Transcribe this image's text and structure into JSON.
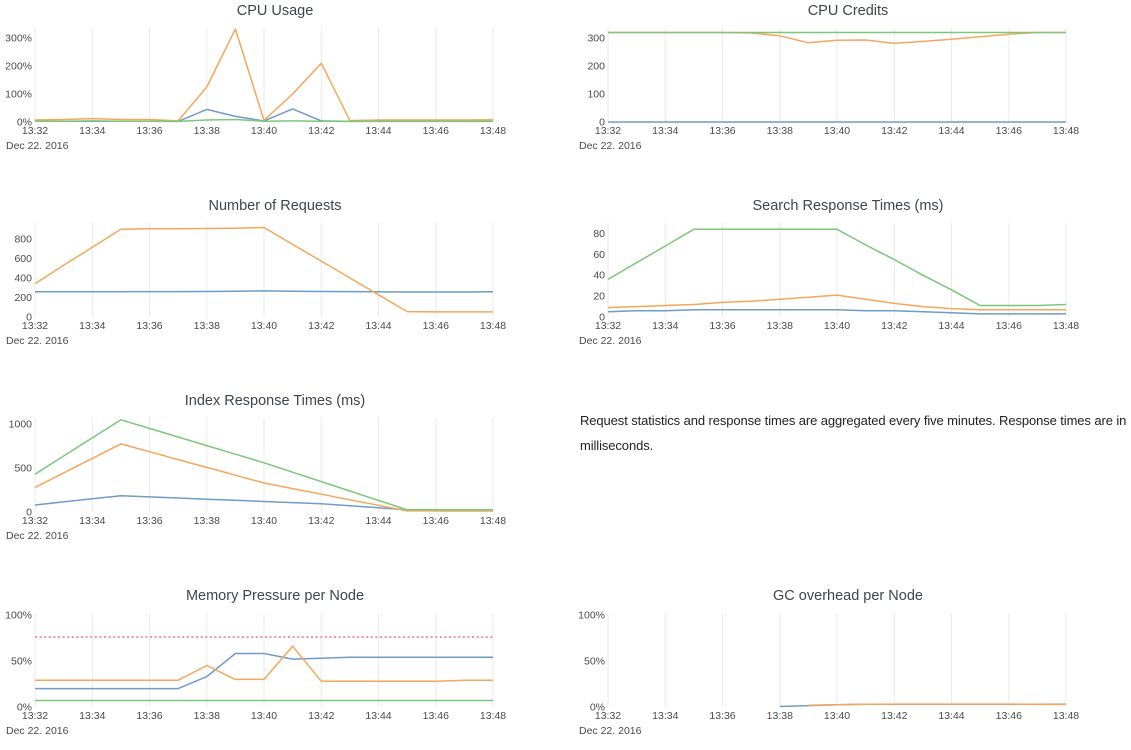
{
  "page": {
    "note": "Request statistics and response times are aggregated every five minutes. Response times are in milliseconds."
  },
  "axis": {
    "date_label": "Dec 22. 2016",
    "x_tick_labels": [
      "13:32",
      "13:34",
      "13:36",
      "13:38",
      "13:40",
      "13:42",
      "13:44",
      "13:46",
      "13:48"
    ]
  },
  "style": {
    "grid_color": "#eaeaea",
    "series_blue": "#6e9bc8",
    "series_orange": "#f5a65b",
    "series_green": "#7cc77a",
    "threshold_red": "#ef8686"
  },
  "chart_data": [
    {
      "type": "line",
      "title": "CPU Usage",
      "ylabel": "",
      "xlabel": "",
      "ylim": [
        0,
        336
      ],
      "grid": "vertical",
      "legend": "none",
      "yticks": [
        {
          "value": 0,
          "label": "0%"
        },
        {
          "value": 100,
          "label": "100%"
        },
        {
          "value": 200,
          "label": "200%"
        },
        {
          "value": 300,
          "label": "300%"
        }
      ],
      "x_note": "one point per minute from 13:32 to 13:48",
      "series": [
        {
          "name": "blue",
          "color": "#6e9bc8",
          "values": [
            3,
            3,
            3,
            3,
            3,
            2,
            45,
            20,
            4,
            47,
            4,
            2,
            2,
            2,
            2,
            2,
            2
          ]
        },
        {
          "name": "orange",
          "color": "#f5a65b",
          "values": [
            7,
            9,
            12,
            9,
            9,
            4,
            125,
            332,
            6,
            100,
            210,
            5,
            7,
            7,
            7,
            7,
            8
          ]
        },
        {
          "name": "green",
          "color": "#7cc77a",
          "values": [
            2,
            3,
            4,
            3,
            3,
            2,
            7,
            9,
            3,
            4,
            3,
            2,
            3,
            3,
            3,
            3,
            3
          ]
        }
      ]
    },
    {
      "type": "line",
      "title": "CPU Credits",
      "ylabel": "",
      "xlabel": "",
      "ylim": [
        0,
        336
      ],
      "grid": "vertical",
      "legend": "none",
      "yticks": [
        {
          "value": 0,
          "label": "0"
        },
        {
          "value": 100,
          "label": "100"
        },
        {
          "value": 200,
          "label": "200"
        },
        {
          "value": 300,
          "label": "300"
        }
      ],
      "series": [
        {
          "name": "blue",
          "color": "#6e9bc8",
          "values": [
            0,
            0,
            0,
            0,
            0,
            0,
            0,
            0,
            0,
            0,
            0,
            0,
            0,
            0,
            0,
            0,
            0
          ]
        },
        {
          "name": "orange",
          "color": "#f5a65b",
          "values": [
            320,
            320,
            320,
            320,
            320,
            318,
            308,
            283,
            292,
            293,
            281,
            288,
            296,
            305,
            314,
            320,
            320
          ]
        },
        {
          "name": "green",
          "color": "#7cc77a",
          "values": [
            320,
            320,
            320,
            320,
            320,
            320,
            320,
            320,
            320,
            320,
            320,
            320,
            320,
            320,
            320,
            320,
            320
          ]
        }
      ]
    },
    {
      "type": "line",
      "title": "Number of Requests",
      "ylabel": "",
      "xlabel": "",
      "ylim": [
        0,
        964
      ],
      "grid": "vertical",
      "legend": "none",
      "yticks": [
        {
          "value": 0,
          "label": "0"
        },
        {
          "value": 200,
          "label": "200"
        },
        {
          "value": 400,
          "label": "400"
        },
        {
          "value": 600,
          "label": "600"
        },
        {
          "value": 800,
          "label": "800"
        }
      ],
      "series": [
        {
          "name": "blue",
          "color": "#6e9bc8",
          "values": [
            258,
            258,
            258,
            259,
            260,
            260,
            262,
            265,
            268,
            265,
            262,
            260,
            258,
            256,
            256,
            256,
            258
          ]
        },
        {
          "name": "orange",
          "color": "#f5a65b",
          "values": [
            340,
            530,
            715,
            900,
            905,
            905,
            908,
            910,
            918,
            745,
            573,
            400,
            228,
            55,
            52,
            52,
            52
          ]
        }
      ]
    },
    {
      "type": "line",
      "title": "Search Response Times (ms)",
      "ylabel": "",
      "xlabel": "",
      "ylim": [
        0,
        90
      ],
      "grid": "vertical",
      "legend": "none",
      "yticks": [
        {
          "value": 0,
          "label": "0"
        },
        {
          "value": 20,
          "label": "20"
        },
        {
          "value": 40,
          "label": "40"
        },
        {
          "value": 60,
          "label": "60"
        },
        {
          "value": 80,
          "label": "80"
        }
      ],
      "series": [
        {
          "name": "blue",
          "color": "#6e9bc8",
          "values": [
            5,
            6,
            6,
            7,
            7,
            7,
            7,
            7,
            7,
            6,
            6,
            5,
            4,
            3,
            3,
            3,
            3
          ]
        },
        {
          "name": "orange",
          "color": "#f5a65b",
          "values": [
            9,
            10,
            11,
            12,
            14,
            15,
            17,
            19,
            21,
            17,
            13,
            10,
            8,
            7,
            7,
            7,
            7
          ]
        },
        {
          "name": "green",
          "color": "#7cc77a",
          "values": [
            36,
            52,
            68,
            84,
            84,
            84,
            84,
            84,
            84,
            69,
            55,
            40,
            26,
            11,
            11,
            11,
            12
          ]
        }
      ]
    },
    {
      "type": "line",
      "title": "Index Response Times (ms)",
      "ylabel": "",
      "xlabel": "",
      "ylim": [
        0,
        1070
      ],
      "grid": "vertical",
      "legend": "none",
      "yticks": [
        {
          "value": 0,
          "label": "0"
        },
        {
          "value": 500,
          "label": "500"
        },
        {
          "value": 1000,
          "label": "1000"
        }
      ],
      "series": [
        {
          "name": "blue",
          "color": "#6e9bc8",
          "values": [
            80,
            115,
            150,
            185,
            172,
            159,
            146,
            133,
            120,
            107,
            94,
            71,
            48,
            25,
            12,
            12,
            12
          ]
        },
        {
          "name": "orange",
          "color": "#f5a65b",
          "values": [
            280,
            445,
            610,
            775,
            686,
            597,
            508,
            419,
            330,
            266,
            203,
            139,
            76,
            12,
            12,
            12,
            12
          ]
        },
        {
          "name": "green",
          "color": "#7cc77a",
          "values": [
            430,
            637,
            843,
            1050,
            952,
            854,
            756,
            658,
            560,
            453,
            346,
            239,
            132,
            25,
            25,
            25,
            25
          ]
        }
      ]
    },
    {
      "type": "line",
      "title": "Memory Pressure per Node",
      "ylabel": "",
      "xlabel": "",
      "ylim": [
        0,
        102
      ],
      "grid": "vertical",
      "legend": "none",
      "yticks": [
        {
          "value": 0,
          "label": "0%"
        },
        {
          "value": 50,
          "label": "50%"
        },
        {
          "value": 100,
          "label": "100%"
        }
      ],
      "threshold": {
        "value": 76,
        "color": "#ef8686",
        "style": "dotted"
      },
      "series": [
        {
          "name": "blue",
          "color": "#6e9bc8",
          "values": [
            20,
            20,
            20,
            20,
            20,
            20,
            33,
            58,
            58,
            52,
            53,
            54,
            54,
            54,
            54,
            54,
            54
          ]
        },
        {
          "name": "orange",
          "color": "#f5a65b",
          "values": [
            29,
            29,
            29,
            29,
            29,
            29,
            45,
            30,
            30,
            66,
            28,
            28,
            28,
            28,
            28,
            29,
            29
          ]
        },
        {
          "name": "green",
          "color": "#7cc77a",
          "values": [
            7,
            7,
            7,
            7,
            7,
            7,
            7,
            7,
            7,
            7,
            7,
            7,
            7,
            7,
            7,
            7,
            7
          ]
        }
      ]
    },
    {
      "type": "line",
      "title": "GC overhead per Node",
      "ylabel": "",
      "xlabel": "",
      "ylim": [
        0,
        102
      ],
      "grid": "vertical",
      "legend": "none",
      "yticks": [
        {
          "value": 0,
          "label": "0%"
        },
        {
          "value": 50,
          "label": "50%"
        },
        {
          "value": 100,
          "label": "100%"
        }
      ],
      "series": [
        {
          "name": "blue",
          "color": "#6e9bc8",
          "values": [
            null,
            null,
            null,
            null,
            null,
            null,
            0.5,
            1.5,
            2.5,
            3,
            3,
            3,
            3,
            3,
            3,
            3,
            3.2
          ]
        },
        {
          "name": "orange",
          "color": "#f5a65b",
          "values": [
            null,
            null,
            null,
            null,
            null,
            null,
            null,
            2,
            2.5,
            3,
            3.2,
            3.2,
            3.2,
            3.2,
            3.2,
            2.8,
            2.8
          ]
        }
      ]
    }
  ]
}
